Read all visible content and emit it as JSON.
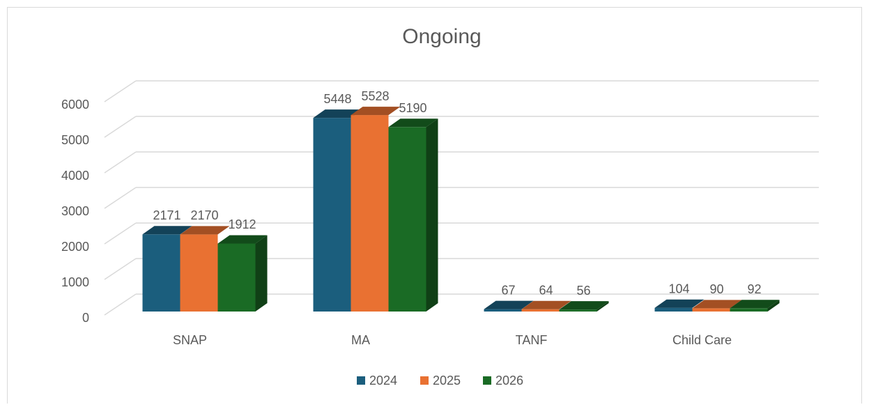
{
  "chart_data": {
    "type": "bar3d",
    "title": "Ongoing",
    "categories": [
      "SNAP",
      "MA",
      "TANF",
      "Child Care"
    ],
    "series": [
      {
        "name": "2024",
        "color": "#1b5e7d",
        "values": [
          2171,
          5448,
          67,
          104
        ]
      },
      {
        "name": "2025",
        "color": "#e97132",
        "values": [
          2170,
          5528,
          64,
          90
        ]
      },
      {
        "name": "2026",
        "color": "#1a6b25",
        "values": [
          1912,
          5190,
          56,
          92
        ]
      }
    ],
    "ylim": [
      0,
      6000
    ],
    "yticks": [
      0,
      1000,
      2000,
      3000,
      4000,
      5000,
      6000
    ],
    "grid": true,
    "legend": "bottom"
  }
}
